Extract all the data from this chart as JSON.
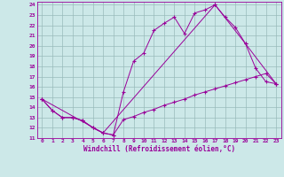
{
  "xlabel": "Windchill (Refroidissement éolien,°C)",
  "xlim": [
    -0.5,
    23.5
  ],
  "ylim": [
    11,
    24.3
  ],
  "yticks": [
    11,
    12,
    13,
    14,
    15,
    16,
    17,
    18,
    19,
    20,
    21,
    22,
    23,
    24
  ],
  "xticks": [
    0,
    1,
    2,
    3,
    4,
    5,
    6,
    7,
    8,
    9,
    10,
    11,
    12,
    13,
    14,
    15,
    16,
    17,
    18,
    19,
    20,
    21,
    22,
    23
  ],
  "bg_color": "#cce8e8",
  "line_color": "#990099",
  "grid_color": "#99bbbb",
  "line1_x": [
    0,
    1,
    2,
    3,
    4,
    5,
    6,
    7,
    8,
    9,
    10,
    11,
    12,
    13,
    14,
    15,
    16,
    17,
    18,
    19,
    20,
    21,
    22,
    23
  ],
  "line1_y": [
    14.8,
    13.7,
    13.0,
    13.0,
    12.7,
    12.0,
    11.5,
    11.3,
    15.5,
    18.5,
    19.3,
    21.5,
    22.2,
    22.8,
    21.2,
    23.2,
    23.5,
    24.0,
    22.8,
    21.8,
    20.2,
    17.8,
    16.5,
    16.3
  ],
  "line2_x": [
    0,
    1,
    2,
    3,
    4,
    5,
    6,
    7,
    8,
    9,
    10,
    11,
    12,
    13,
    14,
    15,
    16,
    17,
    18,
    19,
    20,
    21,
    22,
    23
  ],
  "line2_y": [
    14.8,
    13.7,
    13.0,
    13.0,
    12.7,
    12.0,
    11.5,
    11.3,
    12.8,
    13.1,
    13.5,
    13.8,
    14.2,
    14.5,
    14.8,
    15.2,
    15.5,
    15.8,
    16.1,
    16.4,
    16.7,
    17.0,
    17.3,
    16.3
  ],
  "line3_x": [
    0,
    6,
    17,
    20,
    23
  ],
  "line3_y": [
    14.8,
    11.5,
    24.0,
    20.2,
    16.3
  ]
}
